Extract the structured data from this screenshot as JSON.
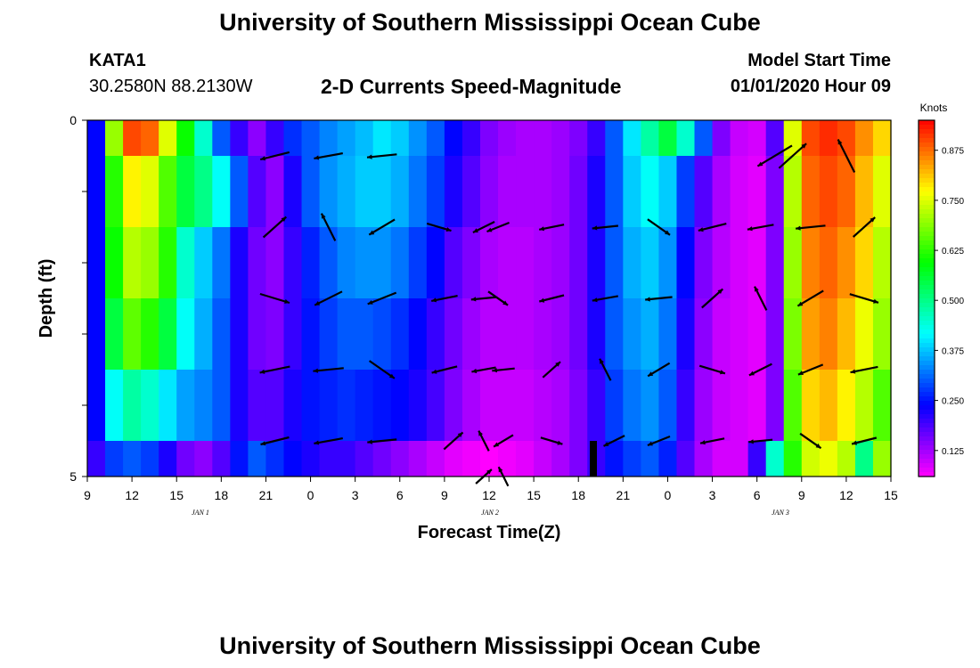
{
  "header": {
    "title": "University of Southern Mississippi Ocean Cube",
    "station_id": "KATA1",
    "coordinates": "30.2580N 88.2130W",
    "plot_title": "2-D Currents Speed-Magnitude",
    "model_label": "Model Start Time",
    "model_time": "01/01/2020 Hour 09"
  },
  "footer": {
    "title": "University of Southern Mississippi Ocean Cube"
  },
  "chart_data": {
    "type": "heatmap",
    "title": "2-D Currents Speed-Magnitude",
    "xlabel": "Forecast Time(Z)",
    "ylabel": "Depth (ft)",
    "y_ticks": [
      "0",
      "5"
    ],
    "ylim": [
      0,
      5
    ],
    "x_ticks": [
      "9",
      "12",
      "15",
      "18",
      "21",
      "0",
      "3",
      "6",
      "9",
      "12",
      "15",
      "18",
      "21",
      "0",
      "3",
      "6",
      "9",
      "12",
      "15"
    ],
    "date_labels": [
      "JAN 1",
      "JAN 2",
      "JAN 3"
    ],
    "colorbar": {
      "unit": "Knots",
      "ticks": [
        "0.875",
        "0.750",
        "0.625",
        "0.500",
        "0.375",
        "0.250",
        "0.125"
      ],
      "range": [
        0.06,
        0.95
      ]
    },
    "speed_by_hour_knots": [
      [
        0.24,
        0.7,
        0.9,
        0.88,
        0.75,
        0.6,
        0.45,
        0.3,
        0.2,
        0.14,
        0.2,
        0.27,
        0.3,
        0.33,
        0.35,
        0.37,
        0.4,
        0.38,
        0.34,
        0.3,
        0.24,
        0.2,
        0.15,
        0.13,
        0.12,
        0.12,
        0.13,
        0.15,
        0.2,
        0.3,
        0.4,
        0.48,
        0.55,
        0.45,
        0.3,
        0.15,
        0.1,
        0.09,
        0.18,
        0.75,
        0.9,
        0.92,
        0.9,
        0.85,
        0.8
      ],
      [
        0.24,
        0.62,
        0.78,
        0.75,
        0.65,
        0.55,
        0.5,
        0.42,
        0.3,
        0.18,
        0.14,
        0.22,
        0.3,
        0.34,
        0.36,
        0.38,
        0.38,
        0.36,
        0.32,
        0.28,
        0.22,
        0.18,
        0.14,
        0.12,
        0.12,
        0.12,
        0.13,
        0.16,
        0.22,
        0.3,
        0.38,
        0.42,
        0.38,
        0.28,
        0.18,
        0.12,
        0.09,
        0.08,
        0.15,
        0.72,
        0.88,
        0.9,
        0.88,
        0.82,
        0.75
      ],
      [
        0.24,
        0.6,
        0.72,
        0.7,
        0.62,
        0.45,
        0.38,
        0.32,
        0.22,
        0.16,
        0.14,
        0.2,
        0.26,
        0.3,
        0.33,
        0.34,
        0.34,
        0.32,
        0.28,
        0.24,
        0.18,
        0.15,
        0.12,
        0.11,
        0.11,
        0.12,
        0.13,
        0.16,
        0.22,
        0.3,
        0.36,
        0.38,
        0.34,
        0.24,
        0.15,
        0.11,
        0.09,
        0.08,
        0.15,
        0.7,
        0.86,
        0.88,
        0.85,
        0.8,
        0.72
      ],
      [
        0.24,
        0.55,
        0.66,
        0.62,
        0.55,
        0.42,
        0.36,
        0.3,
        0.22,
        0.16,
        0.15,
        0.2,
        0.25,
        0.28,
        0.3,
        0.3,
        0.29,
        0.27,
        0.24,
        0.2,
        0.16,
        0.13,
        0.11,
        0.11,
        0.11,
        0.12,
        0.13,
        0.16,
        0.22,
        0.3,
        0.34,
        0.36,
        0.32,
        0.22,
        0.14,
        0.1,
        0.09,
        0.08,
        0.15,
        0.68,
        0.84,
        0.86,
        0.82,
        0.76,
        0.7
      ],
      [
        0.24,
        0.42,
        0.48,
        0.45,
        0.4,
        0.35,
        0.33,
        0.3,
        0.22,
        0.18,
        0.18,
        0.22,
        0.25,
        0.26,
        0.27,
        0.26,
        0.25,
        0.24,
        0.22,
        0.19,
        0.15,
        0.12,
        0.1,
        0.1,
        0.1,
        0.11,
        0.12,
        0.15,
        0.2,
        0.28,
        0.32,
        0.34,
        0.3,
        0.2,
        0.13,
        0.1,
        0.09,
        0.08,
        0.15,
        0.65,
        0.8,
        0.82,
        0.78,
        0.72,
        0.65
      ],
      [
        0.2,
        0.28,
        0.3,
        0.28,
        0.22,
        0.16,
        0.14,
        0.18,
        0.25,
        0.3,
        0.27,
        0.24,
        0.22,
        0.2,
        0.2,
        0.18,
        0.16,
        0.14,
        0.12,
        0.1,
        0.08,
        0.07,
        0.06,
        0.07,
        0.08,
        0.1,
        0.12,
        0.15,
        0.2,
        0.25,
        0.28,
        0.3,
        0.26,
        0.18,
        0.12,
        0.09,
        0.09,
        0.2,
        0.45,
        0.62,
        0.74,
        0.76,
        0.72,
        0.5,
        0.7
      ]
    ],
    "current_vectors": [
      [
        [
          10.5,
          1,
          0.52
        ],
        [
          13.5,
          1,
          0.5
        ],
        [
          16.5,
          1,
          0.52
        ],
        [
          39.5,
          1,
          0.78
        ],
        [
          42.5,
          1,
          0.78
        ],
        [
          38.5,
          1,
          0.9
        ]
      ],
      [
        [
          10.5,
          3,
          0.55
        ],
        [
          13.5,
          3,
          0.55
        ],
        [
          16.5,
          3,
          0.52
        ],
        [
          19.7,
          3,
          0.35
        ],
        [
          22.2,
          3,
          0.3
        ],
        [
          23.0,
          3,
          0.3
        ],
        [
          26.0,
          3,
          0.35
        ],
        [
          29.0,
          3,
          0.38
        ],
        [
          32.0,
          3,
          0.42
        ],
        [
          35.0,
          3,
          0.48
        ],
        [
          37.7,
          3,
          0.4
        ],
        [
          40.5,
          3,
          0.52
        ],
        [
          43.5,
          3,
          0.5
        ],
        [
          46.5,
          3,
          0.48
        ],
        [
          49.5,
          3,
          0.4
        ],
        [
          52.5,
          3,
          0.32
        ],
        [
          55.5,
          3,
          0.3
        ],
        [
          58.5,
          3,
          0.42
        ],
        [
          61.0,
          3,
          0.45
        ],
        [
          64.5,
          3,
          0.48
        ],
        [
          67.5,
          3,
          0.48
        ]
      ],
      [
        [
          10.5,
          5,
          0.55
        ],
        [
          13.5,
          5,
          0.55
        ],
        [
          16.5,
          5,
          0.55
        ],
        [
          20.0,
          5,
          0.4
        ],
        [
          22.2,
          5,
          0.35
        ],
        [
          23.0,
          5,
          0.3
        ],
        [
          26.0,
          5,
          0.35
        ],
        [
          29.0,
          5,
          0.38
        ],
        [
          32.0,
          5,
          0.42
        ],
        [
          35.0,
          5,
          0.45
        ],
        [
          37.7,
          5,
          0.4
        ],
        [
          40.5,
          5,
          0.52
        ],
        [
          43.5,
          5,
          0.52
        ],
        [
          46.5,
          5,
          0.5
        ],
        [
          49.5,
          5,
          0.45
        ],
        [
          52.5,
          5,
          0.4
        ],
        [
          55.5,
          5,
          0.38
        ],
        [
          58.5,
          5,
          0.45
        ],
        [
          61.0,
          5,
          0.48
        ],
        [
          64.5,
          5,
          0.5
        ],
        [
          67.5,
          5,
          0.5
        ]
      ],
      [
        [
          10.5,
          7,
          0.55
        ],
        [
          13.5,
          7,
          0.55
        ],
        [
          16.5,
          7,
          0.55
        ],
        [
          20.0,
          7,
          0.38
        ],
        [
          22.2,
          7,
          0.32
        ],
        [
          23.3,
          7,
          0.25
        ],
        [
          26.0,
          7,
          0.28
        ],
        [
          29.0,
          7,
          0.32
        ],
        [
          32.0,
          7,
          0.35
        ],
        [
          35.0,
          7,
          0.4
        ],
        [
          37.7,
          7,
          0.35
        ],
        [
          40.5,
          7,
          0.4
        ],
        [
          43.5,
          7,
          0.45
        ],
        [
          46.5,
          7,
          0.48
        ],
        [
          49.5,
          7,
          0.5
        ],
        [
          52.5,
          7,
          0.48
        ],
        [
          55.5,
          7,
          0.42
        ],
        [
          58.5,
          7,
          0.45
        ],
        [
          61.0,
          7,
          0.48
        ],
        [
          64.5,
          7,
          0.5
        ],
        [
          67.5,
          7,
          0.5
        ]
      ],
      [
        [
          10.5,
          9,
          0.5
        ],
        [
          13.5,
          9,
          0.5
        ],
        [
          16.5,
          9,
          0.5
        ],
        [
          20.5,
          9,
          0.35
        ],
        [
          22.2,
          9,
          0.25
        ],
        [
          23.3,
          9,
          0.25
        ],
        [
          26.0,
          9,
          0.25
        ],
        [
          29.5,
          9,
          0.28
        ],
        [
          32.0,
          9,
          0.3
        ],
        [
          35.0,
          9,
          0.32
        ],
        [
          37.7,
          9,
          0.3
        ],
        [
          40.5,
          9,
          0.35
        ],
        [
          43.5,
          9,
          0.35
        ],
        [
          46.5,
          9,
          0.4
        ],
        [
          49.5,
          9,
          0.42
        ],
        [
          52.5,
          9,
          0.4
        ],
        [
          55.5,
          9,
          0.38
        ],
        [
          58.5,
          9,
          0.42
        ],
        [
          61.0,
          9,
          0.45
        ],
        [
          64.5,
          9,
          0.48
        ],
        [
          67.5,
          9,
          0.48
        ]
      ],
      [
        [
          22.2,
          10,
          0.2
        ],
        [
          23.3,
          10,
          0.2
        ]
      ]
    ]
  }
}
